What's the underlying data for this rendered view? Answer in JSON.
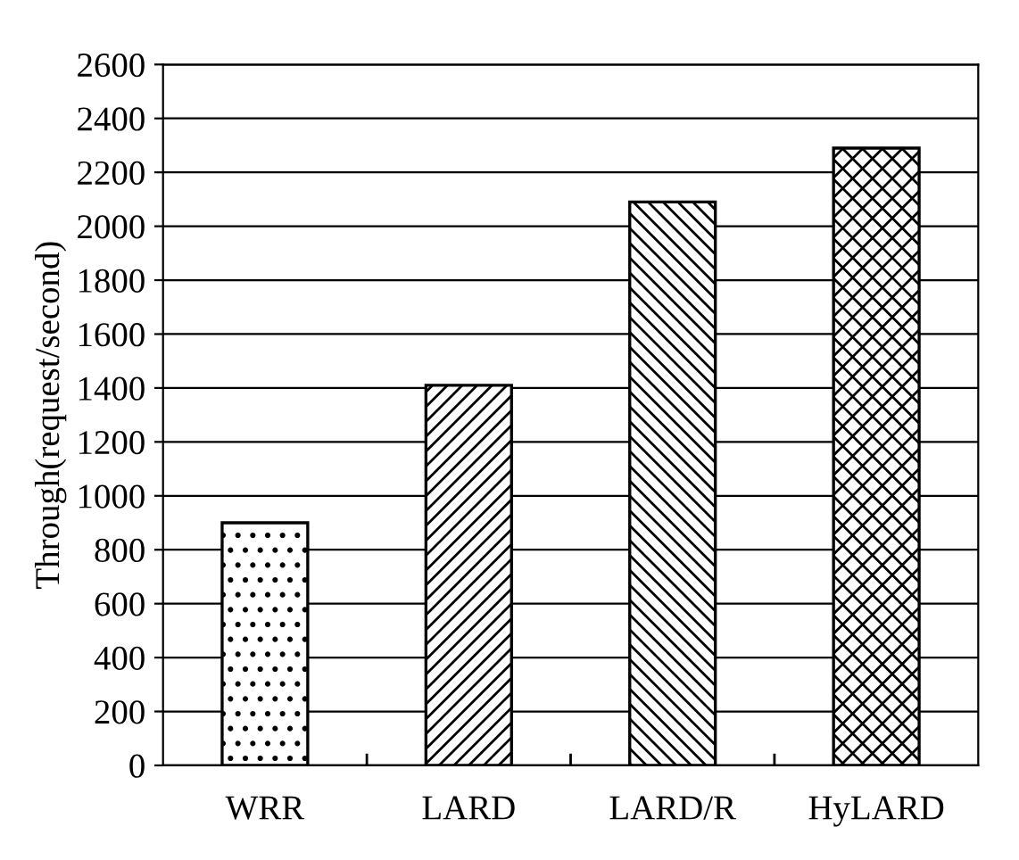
{
  "chart_data": {
    "type": "bar",
    "ylabel": "Through(request/second)",
    "categories": [
      "WRR",
      "LARD",
      "LARD/R",
      "HyLARD"
    ],
    "values": [
      900,
      1410,
      2090,
      2290
    ],
    "ylim": [
      0,
      2600
    ],
    "yticks": [
      0,
      200,
      400,
      600,
      800,
      1000,
      1200,
      1400,
      1600,
      1800,
      2000,
      2200,
      2400,
      2600
    ],
    "grid": "y",
    "legend": false
  }
}
